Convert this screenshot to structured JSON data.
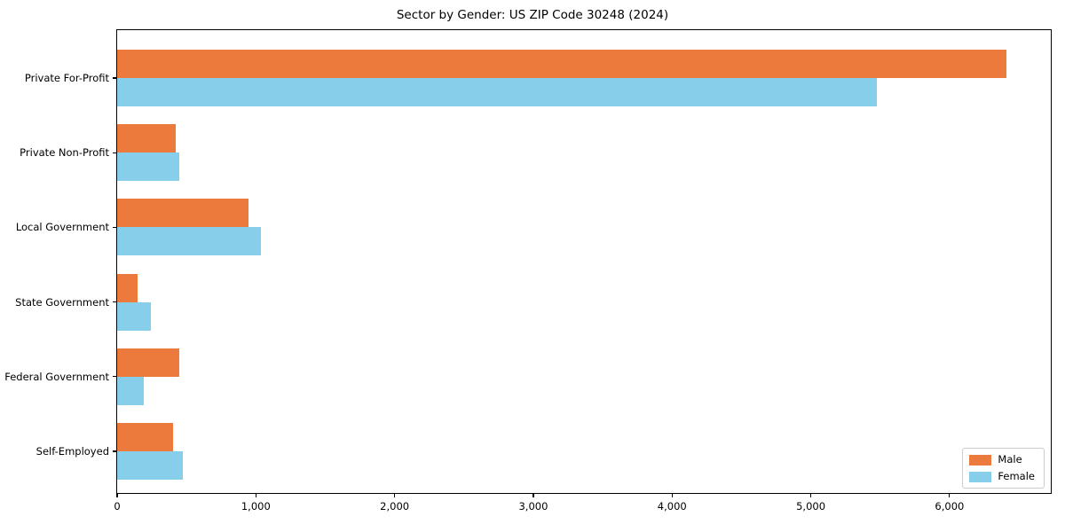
{
  "title": "Sector by Gender: US ZIP Code 30248 (2024)",
  "chart_data": {
    "type": "bar",
    "orientation": "horizontal",
    "title": "Sector by Gender: US ZIP Code 30248 (2024)",
    "categories": [
      "Private For-Profit",
      "Private Non-Profit",
      "Local Government",
      "State Government",
      "Federal Government",
      "Self-Employed"
    ],
    "series": [
      {
        "name": "Male",
        "color": "#EB7A3C",
        "values": [
          6410,
          420,
          950,
          150,
          445,
          400
        ]
      },
      {
        "name": "Female",
        "color": "#87CEEB",
        "values": [
          5475,
          445,
          1035,
          240,
          190,
          475
        ]
      }
    ],
    "xlabel": "",
    "ylabel": "",
    "xlim": [
      0,
      6730
    ],
    "xticks": [
      0,
      1000,
      2000,
      3000,
      4000,
      5000,
      6000
    ],
    "xtick_labels": [
      "0",
      "1,000",
      "2,000",
      "3,000",
      "4,000",
      "5,000",
      "6,000"
    ],
    "legend": {
      "position": "lower right",
      "entries": [
        "Male",
        "Female"
      ]
    },
    "grid": false,
    "background": "#ffffff",
    "spine_color": "#000000"
  }
}
